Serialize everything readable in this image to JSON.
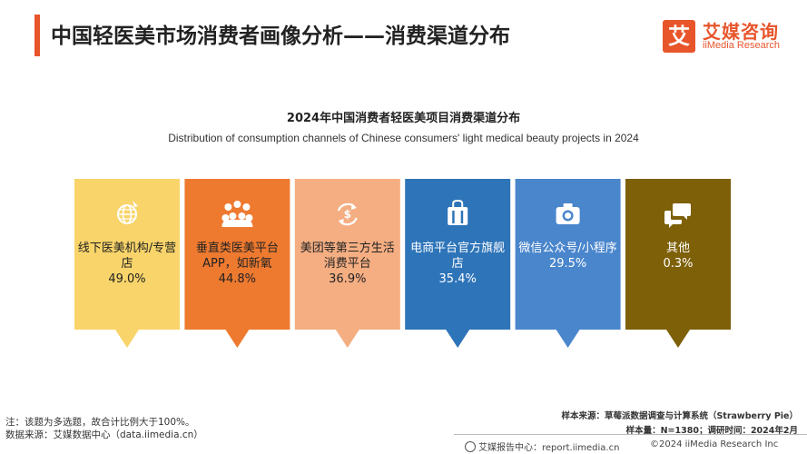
{
  "header": {
    "title": "中国轻医美市场消费者画像分析——消费渠道分布",
    "logo_mark": "艾",
    "logo_cn": "艾媒咨询",
    "logo_en": "iiMedia Research"
  },
  "chart_data": {
    "type": "bar",
    "title": "2024年中国消费者轻医美项目消费渠道分布",
    "subtitle": "Distribution of consumption channels of Chinese consumers' light medical beauty projects in 2024",
    "categories": [
      "线下医美机构/专营店",
      "垂直类医美平台APP，如新氧",
      "美团等第三方生活消费平台",
      "电商平台官方旗舰店",
      "微信公众号/小程序",
      "其他"
    ],
    "values": [
      49.0,
      44.8,
      36.9,
      35.4,
      29.5,
      0.3
    ],
    "unit": "%",
    "cards": [
      {
        "label": "线下医美机构/专营店",
        "value": "49.0%",
        "color": "#f8d46a",
        "text_color": "#222222",
        "icon": "globe-icon"
      },
      {
        "label": "垂直类医美平台APP，如新氧",
        "value": "44.8%",
        "color": "#ee7a30",
        "text_color": "#222222",
        "icon": "people-icon"
      },
      {
        "label": "美团等第三方生活消费平台",
        "value": "36.9%",
        "color": "#f4ae82",
        "text_color": "#222222",
        "icon": "money-cycle-icon"
      },
      {
        "label": "电商平台官方旗舰店",
        "value": "35.4%",
        "color": "#2e74b8",
        "text_color": "#ffffff",
        "icon": "shopping-bag-icon"
      },
      {
        "label": "微信公众号/小程序",
        "value": "29.5%",
        "color": "#4a86cc",
        "text_color": "#ffffff",
        "icon": "camera-icon"
      },
      {
        "label": "其他",
        "value": "0.3%",
        "color": "#7d6008",
        "text_color": "#ffffff",
        "icon": "chat-bubbles-icon"
      }
    ]
  },
  "notes": {
    "note": "注：该题为多选题，故合计比例大于100%。",
    "data_source": "数据来源：艾媒数据中心（data.iimedia.cn）"
  },
  "sample": {
    "source": "样本来源：草莓派数据调查与计算系统（Strawberry Pie）",
    "size": "样本量：N=1380；调研时间：2024年2月"
  },
  "footer": {
    "report_center": "艾媒报告中心：report.iimedia.cn",
    "copyright": "©2024  iiMedia Research  Inc"
  }
}
